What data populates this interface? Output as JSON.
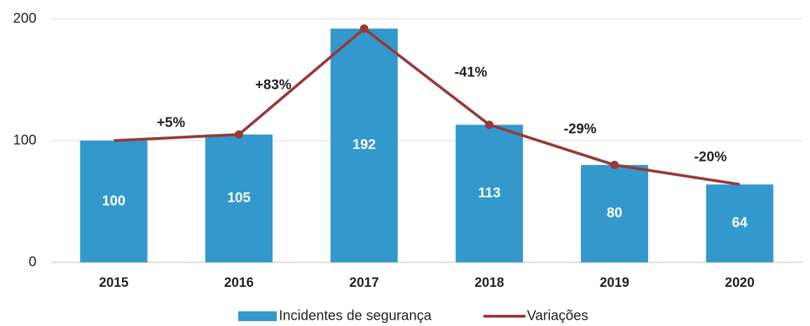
{
  "chart_data": {
    "type": "bar_line",
    "categories": [
      "2015",
      "2016",
      "2017",
      "2018",
      "2019",
      "2020"
    ],
    "series": [
      {
        "name": "Incidentes de segurança",
        "type": "bar",
        "color": "#3399cc",
        "values": [
          100,
          105,
          192,
          113,
          80,
          64
        ]
      },
      {
        "name": "Variações",
        "type": "line",
        "color": "#973a38",
        "values": [
          100,
          105,
          192,
          113,
          80,
          64
        ],
        "markers": [
          false,
          true,
          true,
          true,
          true,
          false
        ]
      }
    ],
    "annotations": [
      "+5%",
      "+83%",
      "-41%",
      "-29%",
      "-20%"
    ],
    "ylim": [
      0,
      200
    ],
    "yticks": [
      0,
      100,
      200
    ],
    "grid": true,
    "legend": "bottom"
  }
}
